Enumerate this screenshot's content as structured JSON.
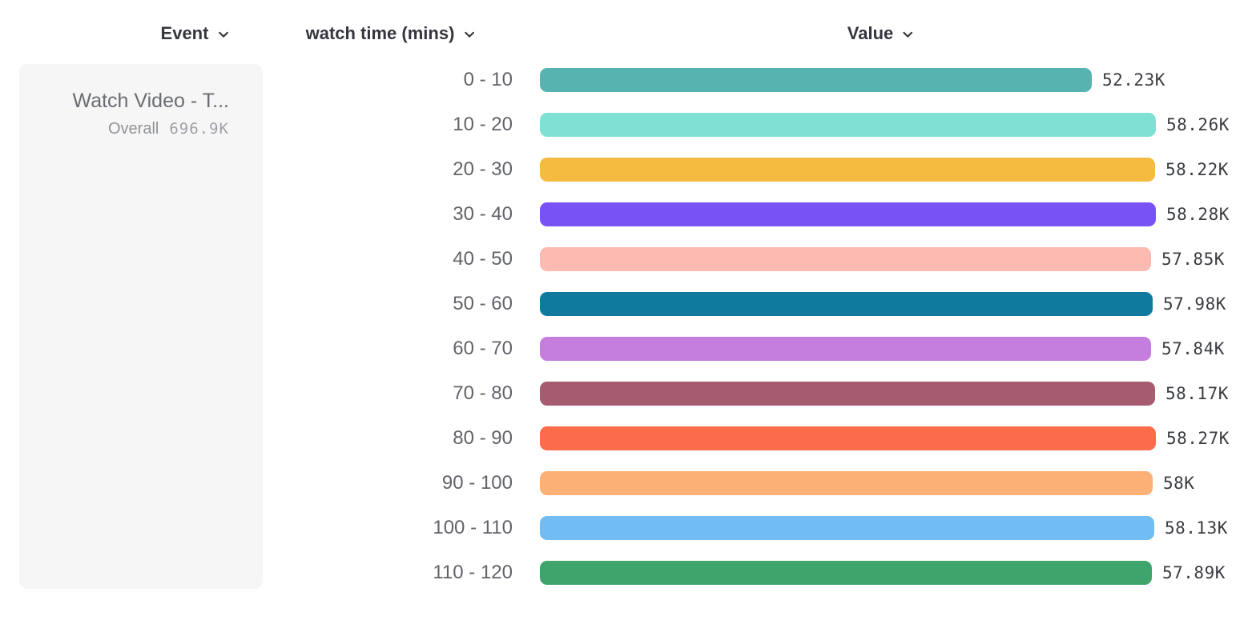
{
  "header": {
    "event": {
      "label": "Event"
    },
    "breakdown": {
      "label": "watch time (mins)"
    },
    "value": {
      "label": "Value"
    }
  },
  "legend_card": {
    "event_name": "Watch Video - T...",
    "overall_label": "Overall",
    "overall_value": "696.9K"
  },
  "chart_data": {
    "type": "bar",
    "orientation": "horizontal",
    "title": "",
    "xlabel": "Value",
    "ylabel": "watch time (mins)",
    "categories": [
      "0 - 10",
      "10 - 20",
      "20 - 30",
      "30 - 40",
      "40 - 50",
      "50 - 60",
      "60 - 70",
      "70 - 80",
      "80 - 90",
      "90 - 100",
      "100 - 110",
      "110 - 120"
    ],
    "values": [
      52230,
      58260,
      58220,
      58280,
      57850,
      57980,
      57840,
      58170,
      58270,
      58000,
      58130,
      57890
    ],
    "value_labels": [
      "52.23K",
      "58.26K",
      "58.22K",
      "58.28K",
      "57.85K",
      "57.98K",
      "57.84K",
      "58.17K",
      "58.27K",
      "58K",
      "58.13K",
      "57.89K"
    ],
    "bar_colors": [
      "#57B3AE",
      "#7FE1D4",
      "#F5BB40",
      "#7852F5",
      "#FCBAB1",
      "#0F7A9D",
      "#C67EDE",
      "#A65B70",
      "#FC6C4B",
      "#FBB175",
      "#70BCF3",
      "#3FA46C"
    ],
    "xlim": [
      0,
      58280
    ],
    "grid": false,
    "legend_position": "left"
  },
  "colors": {
    "header_text": "#33363C",
    "category_label": "#606369",
    "value_text": "#393C41",
    "card_bg": "#F6F6F6",
    "card_title": "#696C72",
    "overall_label": "#8F9297",
    "overall_value": "#9EA1A7"
  }
}
